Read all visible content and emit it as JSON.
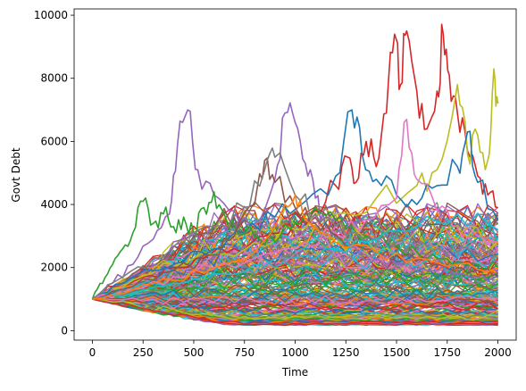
{
  "chart_data": {
    "type": "line",
    "title": "",
    "xlabel": "Time",
    "ylabel": "Govt Debt",
    "xlim": [
      -90,
      2090
    ],
    "ylim": [
      -300,
      10200
    ],
    "x_ticks": [
      0,
      250,
      500,
      750,
      1000,
      1250,
      1500,
      1750,
      2000
    ],
    "y_ticks": [
      0,
      2000,
      4000,
      6000,
      8000,
      10000
    ],
    "grid": false,
    "legend": "none",
    "palette": [
      "#1f77b4",
      "#ff7f0e",
      "#2ca02c",
      "#d62728",
      "#9467bd",
      "#8c564b",
      "#e377c2",
      "#7f7f7f",
      "#bcbd22",
      "#17becf"
    ],
    "series": [
      {
        "color": "#d62728",
        "x": [
          0,
          100,
          250,
          400,
          550,
          700,
          850,
          1000,
          1100,
          1200,
          1260,
          1300,
          1350,
          1400,
          1450,
          1490,
          1520,
          1550,
          1600,
          1650,
          1700,
          1730,
          1760,
          1800,
          1850,
          1900,
          1950,
          2000
        ],
        "values": [
          1000,
          1400,
          1700,
          2000,
          2300,
          2600,
          3000,
          3400,
          3800,
          4600,
          5500,
          4700,
          6000,
          5200,
          6900,
          9400,
          7800,
          9500,
          7600,
          6400,
          7600,
          9400,
          8100,
          6900,
          5700,
          4900,
          4300,
          3900
        ]
      },
      {
        "color": "#bcbd22",
        "x": [
          0,
          200,
          400,
          600,
          800,
          1000,
          1200,
          1400,
          1600,
          1700,
          1800,
          1850,
          1900,
          1950,
          1980,
          2000
        ],
        "values": [
          1000,
          1600,
          2100,
          2400,
          2800,
          3200,
          3700,
          4200,
          4600,
          5100,
          7800,
          5600,
          6200,
          5400,
          8300,
          7200
        ]
      },
      {
        "color": "#9467bd",
        "x": [
          0,
          100,
          200,
          300,
          380,
          420,
          470,
          520,
          600,
          700,
          800,
          900,
          950,
          1000,
          1050,
          1100,
          1150,
          1200,
          1300,
          1400,
          1500,
          1600,
          1700,
          1800,
          1900,
          2000
        ],
        "values": [
          1000,
          1500,
          2100,
          2900,
          3700,
          5900,
          7000,
          5100,
          4300,
          3800,
          3400,
          4800,
          6900,
          6600,
          5300,
          4200,
          3300,
          2900,
          2600,
          2300,
          2100,
          2000,
          1900,
          1800,
          1700,
          1600
        ]
      },
      {
        "color": "#1f77b4",
        "x": [
          0,
          150,
          300,
          450,
          600,
          750,
          900,
          1050,
          1200,
          1280,
          1330,
          1400,
          1500,
          1600,
          1700,
          1800,
          1850,
          1900,
          2000
        ],
        "values": [
          1000,
          1500,
          1900,
          2200,
          2600,
          3100,
          3600,
          4100,
          4900,
          7000,
          5600,
          4800,
          4300,
          4000,
          4600,
          5200,
          6300,
          4700,
          3500
        ]
      },
      {
        "color": "#e377c2",
        "x": [
          0,
          200,
          400,
          600,
          800,
          1000,
          1200,
          1350,
          1500,
          1550,
          1600,
          1700,
          1800,
          1900,
          2000
        ],
        "values": [
          1000,
          1300,
          1700,
          2000,
          2300,
          2600,
          3100,
          3500,
          4200,
          6700,
          4800,
          3800,
          3300,
          3000,
          2800
        ]
      },
      {
        "color": "#2ca02c",
        "x": [
          0,
          50,
          100,
          150,
          200,
          250,
          300,
          350,
          400,
          450,
          500,
          550,
          600,
          650,
          700,
          800,
          900,
          1000,
          1100,
          1200,
          1300,
          1400,
          1500,
          1600,
          1700,
          1800,
          1900,
          2000
        ],
        "values": [
          1000,
          1500,
          2100,
          2600,
          3100,
          4100,
          3400,
          3700,
          3300,
          3600,
          3100,
          3900,
          4400,
          3700,
          3300,
          3000,
          2800,
          3400,
          3900,
          3500,
          3100,
          2900,
          2700,
          2500,
          2300,
          2200,
          2100,
          2000
        ]
      },
      {
        "color": "#8c564b",
        "x": [
          0,
          200,
          400,
          600,
          700,
          800,
          850,
          900,
          1000,
          1100,
          1200,
          1300,
          1400,
          1500,
          1600,
          1700,
          1800,
          1900,
          2000
        ],
        "values": [
          1000,
          1400,
          1900,
          2400,
          3000,
          4000,
          5400,
          4700,
          3900,
          3400,
          3000,
          2700,
          2500,
          2400,
          2200,
          2100,
          2000,
          1900,
          1800
        ]
      },
      {
        "color": "#7f7f7f",
        "x": [
          0,
          150,
          300,
          450,
          600,
          750,
          850,
          900,
          1000,
          1100,
          1200,
          1300,
          1400,
          1500,
          1600,
          1700,
          1800,
          1900,
          2000
        ],
        "values": [
          1000,
          1700,
          2300,
          2800,
          3300,
          3900,
          5100,
          5500,
          4300,
          3700,
          3300,
          3100,
          2900,
          2800,
          2700,
          2600,
          2500,
          2400,
          2300
        ]
      },
      {
        "color": "#17becf",
        "x": [
          0,
          200,
          400,
          600,
          800,
          1000,
          1200,
          1400,
          1600,
          1800,
          2000
        ],
        "values": [
          1000,
          1200,
          1500,
          1800,
          2100,
          2300,
          2600,
          2900,
          3300,
          3700,
          3200
        ]
      },
      {
        "color": "#ff7f0e",
        "x": [
          0,
          200,
          400,
          600,
          800,
          950,
          1000,
          1050,
          1200,
          1400,
          1600,
          1800,
          2000
        ],
        "values": [
          1000,
          1300,
          1600,
          2000,
          2500,
          4000,
          4300,
          3500,
          2800,
          2500,
          2300,
          2100,
          2000
        ]
      }
    ],
    "bundle_count": 240,
    "bundle_points": 41,
    "bundle_x_max": 2000,
    "bundle_y_median": 1000,
    "bundle_y_low": 200,
    "bundle_y_high": 3500
  }
}
